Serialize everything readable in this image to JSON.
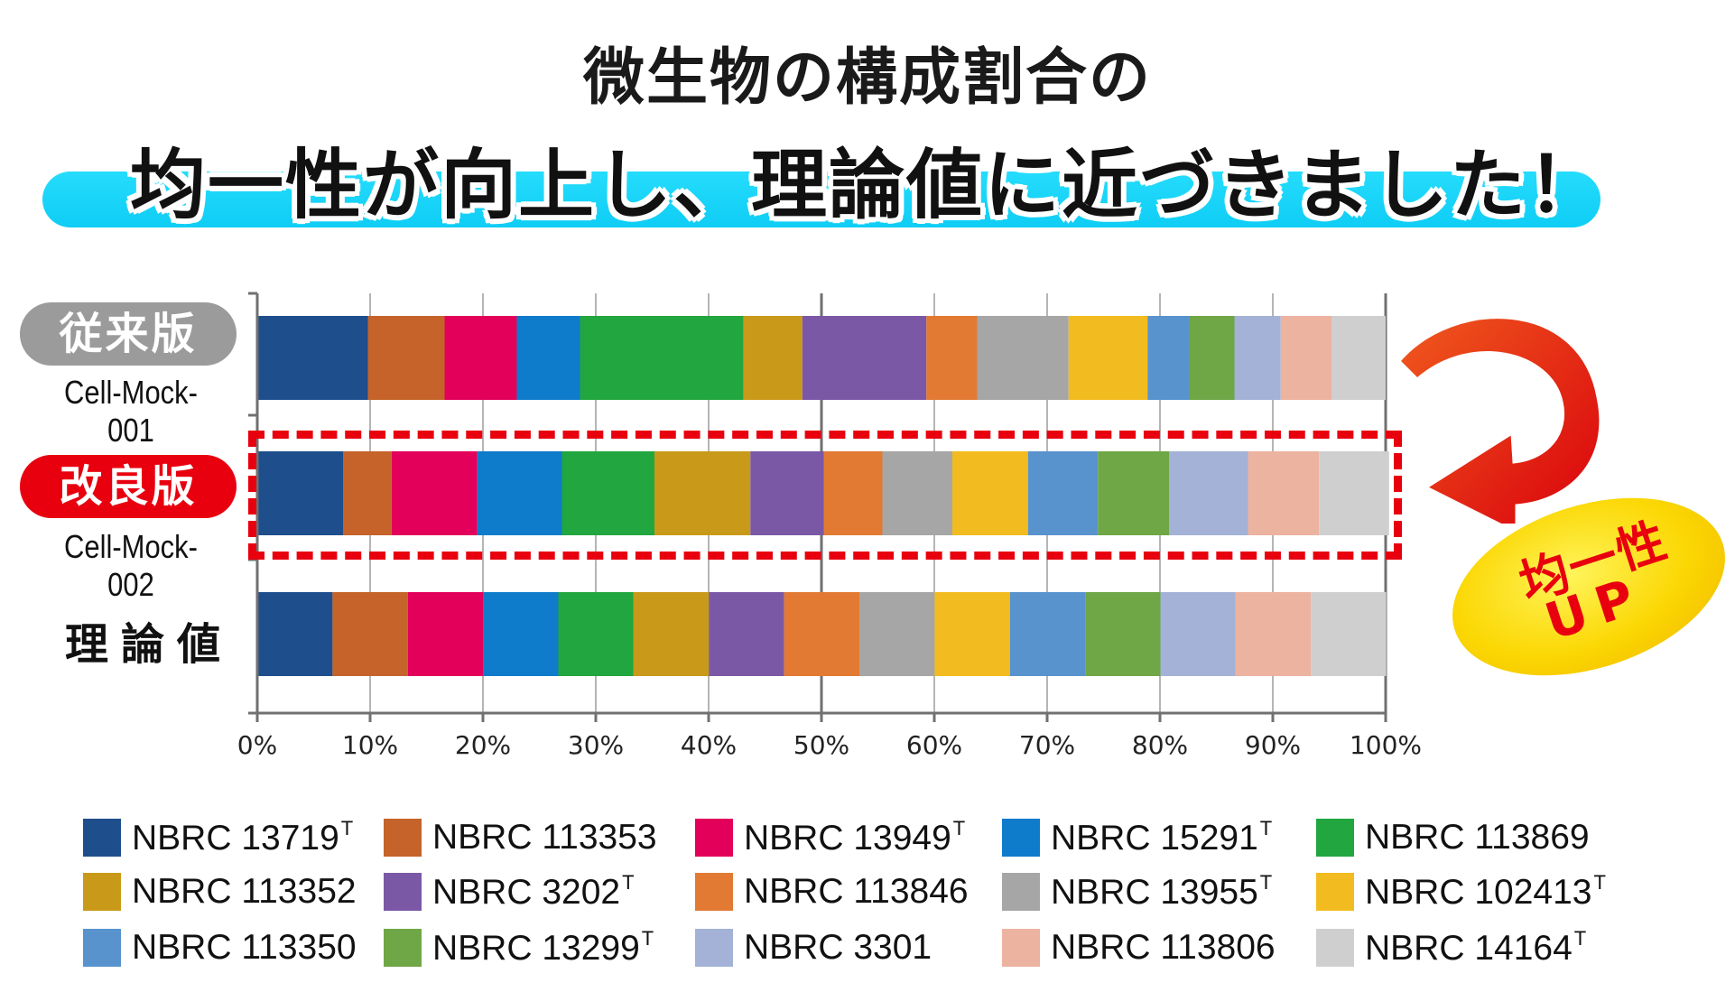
{
  "header": {
    "title_line1": "微生物の構成割合の",
    "title_line2": "均一性が向上し、理論値に近づきました！"
  },
  "rows": {
    "row1_badge": "従来版",
    "row1_code": "Cell-Mock-001",
    "row2_badge": "改良版",
    "row2_code": "Cell-Mock-002",
    "row3_label": "理論値"
  },
  "callout": {
    "line1": "均一性",
    "line2": "UP"
  },
  "colors": {
    "accent_banner": "#11d0f7",
    "highlight_red": "#e8000f",
    "badge_grey": "#9b9b9b",
    "callout_yellow": "#fbd703"
  },
  "chart_data": {
    "type": "bar",
    "orientation": "horizontal",
    "stacked": true,
    "percent": true,
    "categories": [
      "Cell-Mock-001",
      "Cell-Mock-002",
      "理論値"
    ],
    "xlim": [
      0,
      100
    ],
    "xticks": [
      "0%",
      "10%",
      "20%",
      "30%",
      "40%",
      "50%",
      "60%",
      "70%",
      "80%",
      "90%",
      "100%"
    ],
    "grid": true,
    "legend_position": "bottom",
    "series": [
      {
        "name": "NBRC 13719",
        "sup": "T",
        "color": "#1f4e8c",
        "values": [
          9.8,
          7.6,
          6.67
        ]
      },
      {
        "name": "NBRC 113353",
        "sup": "",
        "color": "#c5632a",
        "values": [
          6.8,
          4.3,
          6.67
        ]
      },
      {
        "name": "NBRC 13949",
        "sup": "T",
        "color": "#e3005a",
        "values": [
          6.4,
          7.6,
          6.67
        ]
      },
      {
        "name": "NBRC 15291",
        "sup": "T",
        "color": "#0e7bcb",
        "values": [
          5.6,
          7.5,
          6.67
        ]
      },
      {
        "name": "NBRC 113869",
        "sup": "",
        "color": "#22a63f",
        "values": [
          14.5,
          8.2,
          6.67
        ]
      },
      {
        "name": "NBRC 113352",
        "sup": "",
        "color": "#c99a19",
        "values": [
          5.2,
          8.5,
          6.67
        ]
      },
      {
        "name": "NBRC 3202",
        "sup": "T",
        "color": "#7b58a6",
        "values": [
          11.0,
          6.5,
          6.67
        ]
      },
      {
        "name": "NBRC 113846",
        "sup": "",
        "color": "#e27a33",
        "values": [
          4.5,
          5.2,
          6.67
        ]
      },
      {
        "name": "NBRC 13955",
        "sup": "T",
        "color": "#a6a6a6",
        "values": [
          8.1,
          6.2,
          6.67
        ]
      },
      {
        "name": "NBRC 102413",
        "sup": "T",
        "color": "#f2bb1f",
        "values": [
          7.0,
          6.7,
          6.67
        ]
      },
      {
        "name": "NBRC 113350",
        "sup": "",
        "color": "#5893ce",
        "values": [
          3.7,
          6.2,
          6.67
        ]
      },
      {
        "name": "NBRC 13299",
        "sup": "T",
        "color": "#6fa646",
        "values": [
          4.0,
          6.3,
          6.67
        ]
      },
      {
        "name": "NBRC 3301",
        "sup": "",
        "color": "#a3b2d6",
        "values": [
          4.1,
          7.0,
          6.67
        ]
      },
      {
        "name": "NBRC 113806",
        "sup": "",
        "color": "#ecb3a1",
        "values": [
          4.5,
          6.3,
          6.67
        ]
      },
      {
        "name": "NBRC 14164",
        "sup": "T",
        "color": "#cfcfcf",
        "values": [
          4.8,
          6.2,
          6.67
        ]
      }
    ]
  }
}
